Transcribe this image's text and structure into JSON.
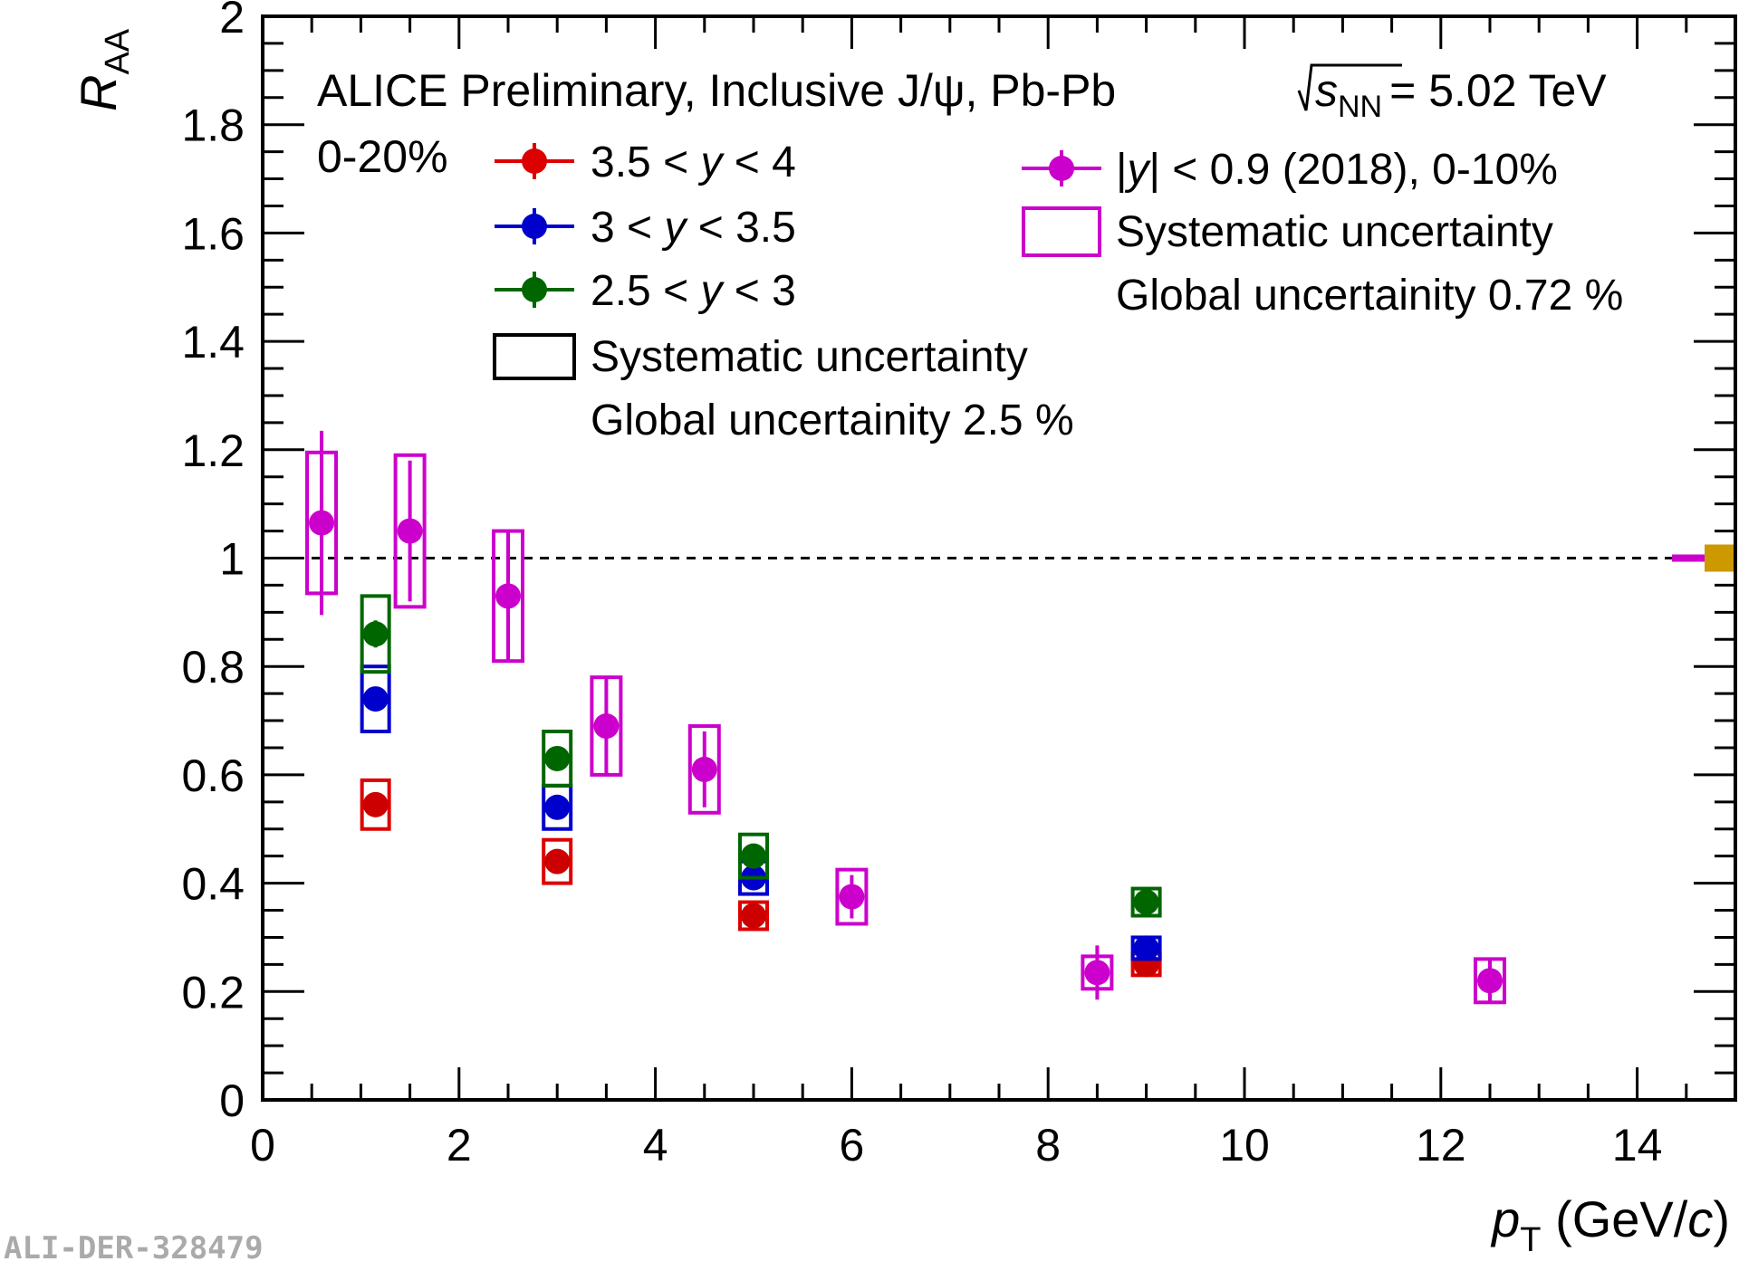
{
  "chart_data": {
    "type": "scatter",
    "title": "ALICE Preliminary, Inclusive J/ψ, Pb-Pb",
    "energy": {
      "symbol": "s",
      "subscript": "NN",
      "value": "= 5.02 TeV"
    },
    "centrality": "0-20%",
    "xlabel": {
      "var": "p",
      "sub": "T",
      "unit_open": " (GeV/",
      "unit_var": "c",
      "unit_close": ")"
    },
    "ylabel": {
      "var": "R",
      "sub": "AA"
    },
    "xlim": [
      0,
      15
    ],
    "ylim": [
      0,
      2
    ],
    "xticks": [
      0,
      2,
      4,
      6,
      8,
      10,
      12,
      14
    ],
    "yticks": [
      0,
      0.2,
      0.4,
      0.6,
      0.8,
      1,
      1.2,
      1.4,
      1.6,
      1.8,
      2
    ],
    "xtick_labels": [
      "0",
      "2",
      "4",
      "6",
      "8",
      "10",
      "12",
      "14"
    ],
    "ytick_labels": [
      "0",
      "0.2",
      "0.4",
      "0.6",
      "0.8",
      "1",
      "1.2",
      "1.4",
      "1.6",
      "1.8",
      "2"
    ],
    "reference_line": 1,
    "legend": {
      "syst_label": "Systematic uncertainty",
      "global_left": "Global uncertainity 2.5 %",
      "global_right": "Global uncertainity 0.72 %"
    },
    "global_boxes": [
      {
        "name": "forward",
        "rel": 0.025,
        "color": "#cc9900"
      },
      {
        "name": "midrapidity",
        "rel": 0.0072,
        "color": "#cc00cc"
      }
    ],
    "series": [
      {
        "name": "3.5 < y < 4",
        "label_parts": [
          "3.5 < ",
          "y",
          " < 4"
        ],
        "color": "#dd0000",
        "marker": "#cc0000",
        "points": [
          {
            "x": 1.15,
            "y": 0.545,
            "stat": 0.015,
            "syst": 0.045
          },
          {
            "x": 3.0,
            "y": 0.44,
            "stat": 0.012,
            "syst": 0.04
          },
          {
            "x": 5.0,
            "y": 0.34,
            "stat": 0.012,
            "syst": 0.025
          },
          {
            "x": 9.0,
            "y": 0.25,
            "stat": 0.012,
            "syst": 0.02
          }
        ]
      },
      {
        "name": "3 < y < 3.5",
        "label_parts": [
          "3 < ",
          "y",
          " < 3.5"
        ],
        "color": "#0000cc",
        "marker": "#0000cc",
        "points": [
          {
            "x": 1.15,
            "y": 0.74,
            "stat": 0.02,
            "syst": 0.06
          },
          {
            "x": 3.0,
            "y": 0.54,
            "stat": 0.015,
            "syst": 0.04
          },
          {
            "x": 5.0,
            "y": 0.41,
            "stat": 0.015,
            "syst": 0.03
          },
          {
            "x": 9.0,
            "y": 0.28,
            "stat": 0.015,
            "syst": 0.02
          }
        ]
      },
      {
        "name": "2.5 < y < 3",
        "label_parts": [
          "2.5 < ",
          "y",
          " < 3"
        ],
        "color": "#006600",
        "marker": "#006600",
        "points": [
          {
            "x": 1.15,
            "y": 0.86,
            "stat": 0.025,
            "syst": 0.07
          },
          {
            "x": 3.0,
            "y": 0.63,
            "stat": 0.02,
            "syst": 0.05
          },
          {
            "x": 5.0,
            "y": 0.45,
            "stat": 0.02,
            "syst": 0.04
          },
          {
            "x": 9.0,
            "y": 0.365,
            "stat": 0.02,
            "syst": 0.025
          }
        ]
      },
      {
        "name": "|y| < 0.9 (2018), 0-10%",
        "label_parts": [
          "|",
          "y",
          "| < 0.9 (2018), 0-10%"
        ],
        "color": "#cc00cc",
        "marker": "#cc00cc",
        "points": [
          {
            "x": 0.6,
            "y": 1.065,
            "stat": 0.17,
            "syst": 0.13
          },
          {
            "x": 1.5,
            "y": 1.05,
            "stat": 0.13,
            "syst": 0.14
          },
          {
            "x": 2.5,
            "y": 0.93,
            "stat": 0.12,
            "syst": 0.12
          },
          {
            "x": 3.5,
            "y": 0.69,
            "stat": 0.09,
            "syst": 0.09
          },
          {
            "x": 4.5,
            "y": 0.61,
            "stat": 0.07,
            "syst": 0.08
          },
          {
            "x": 6.0,
            "y": 0.375,
            "stat": 0.04,
            "syst": 0.05
          },
          {
            "x": 8.5,
            "y": 0.235,
            "stat": 0.05,
            "syst": 0.03
          },
          {
            "x": 12.5,
            "y": 0.22,
            "stat": 0.04,
            "syst": 0.04
          }
        ]
      }
    ]
  },
  "footer": {
    "figure_id": "ALI-DER-328479"
  }
}
